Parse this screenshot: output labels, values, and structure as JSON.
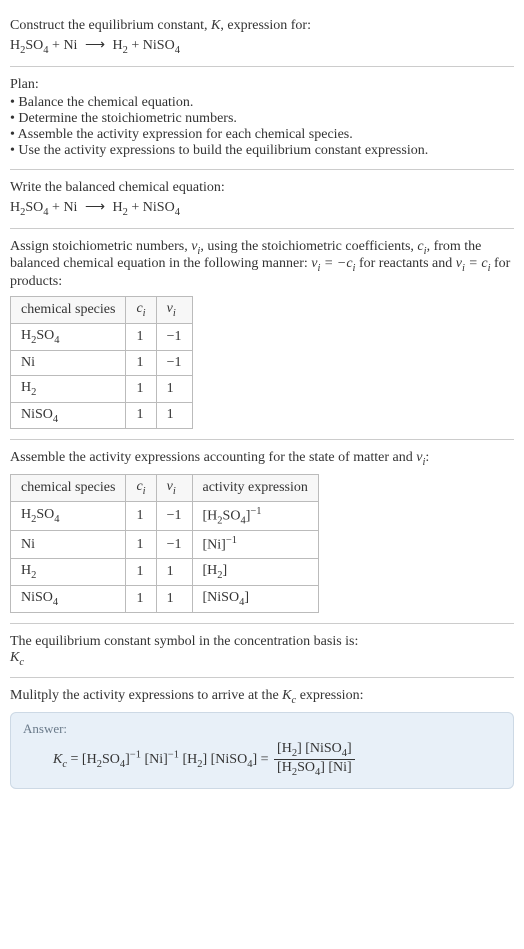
{
  "intro": {
    "line1": "Construct the equilibrium constant, ",
    "K": "K",
    "line1b": ", expression for:"
  },
  "equation": {
    "reactants": [
      {
        "formula": "H",
        "sub1": "2",
        "rest": "SO",
        "sub2": "4"
      },
      {
        "formula": "Ni"
      }
    ],
    "arrow": "⟶",
    "products": [
      {
        "formula": "H",
        "sub1": "2"
      },
      {
        "formula": "NiSO",
        "sub1": "4"
      }
    ]
  },
  "plan": {
    "title": "Plan:",
    "items": [
      "Balance the chemical equation.",
      "Determine the stoichiometric numbers.",
      "Assemble the activity expression for each chemical species.",
      "Use the activity expressions to build the equilibrium constant expression."
    ]
  },
  "balanced": {
    "title": "Write the balanced chemical equation:"
  },
  "assign": {
    "text_a": "Assign stoichiometric numbers, ",
    "nu": "ν",
    "text_b": ", using the stoichiometric coefficients, ",
    "c": "c",
    "text_c": ", from the balanced chemical equation in the following manner: ",
    "eq1": "νᵢ = −cᵢ",
    "text_d": " for reactants and ",
    "eq2": "νᵢ = cᵢ",
    "text_e": " for products:"
  },
  "table1": {
    "headers": [
      "chemical species",
      "cᵢ",
      "νᵢ"
    ],
    "rows": [
      {
        "species": {
          "a": "H",
          "s1": "2",
          "b": "SO",
          "s2": "4"
        },
        "c": "1",
        "nu": "−1"
      },
      {
        "species": {
          "a": "Ni"
        },
        "c": "1",
        "nu": "−1"
      },
      {
        "species": {
          "a": "H",
          "s1": "2"
        },
        "c": "1",
        "nu": "1"
      },
      {
        "species": {
          "a": "NiSO",
          "s1": "4"
        },
        "c": "1",
        "nu": "1"
      }
    ]
  },
  "assemble": {
    "text_a": "Assemble the activity expressions accounting for the state of matter and ",
    "text_b": ":"
  },
  "table2": {
    "headers": [
      "chemical species",
      "cᵢ",
      "νᵢ",
      "activity expression"
    ],
    "rows": [
      {
        "species": {
          "a": "H",
          "s1": "2",
          "b": "SO",
          "s2": "4"
        },
        "c": "1",
        "nu": "−1",
        "act": {
          "base": "[H₂SO₄]",
          "sup": "−1"
        }
      },
      {
        "species": {
          "a": "Ni"
        },
        "c": "1",
        "nu": "−1",
        "act": {
          "base": "[Ni]",
          "sup": "−1"
        }
      },
      {
        "species": {
          "a": "H",
          "s1": "2"
        },
        "c": "1",
        "nu": "1",
        "act": {
          "base": "[H₂]"
        }
      },
      {
        "species": {
          "a": "NiSO",
          "s1": "4"
        },
        "c": "1",
        "nu": "1",
        "act": {
          "base": "[NiSO₄]"
        }
      }
    ]
  },
  "eqconst": {
    "line1": "The equilibrium constant symbol in the concentration basis is:",
    "Kc": "K",
    "Kc_sub": "c"
  },
  "multiply": {
    "text_a": "Mulitply the activity expressions to arrive at the ",
    "text_b": " expression:"
  },
  "answer": {
    "label": "Answer:",
    "lhs_K": "K",
    "lhs_sub": "c",
    "eq": " = ",
    "t1": "[H₂SO₄]",
    "s1": "−1",
    "t2": " [Ni]",
    "s2": "−1",
    "t3": " [H₂] [NiSO₄] = ",
    "num": "[H₂] [NiSO₄]",
    "den": "[H₂SO₄] [Ni]"
  }
}
